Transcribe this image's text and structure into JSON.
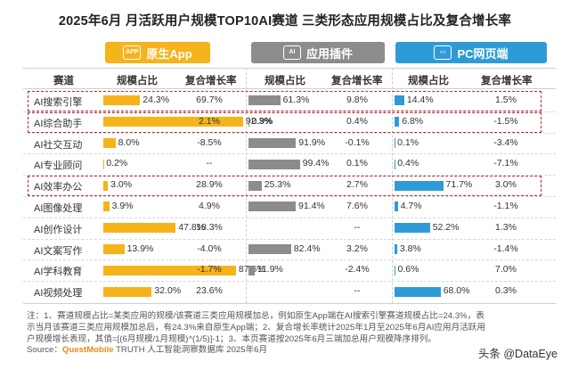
{
  "title": "2025年6月 月活跃用户规模TOP10AI赛道 三类形态应用规模占比及复合增长率",
  "groups": [
    {
      "name": "原生App",
      "icon": "APP",
      "color": "#f5b31c"
    },
    {
      "name": "应用插件",
      "icon": "AI",
      "color": "#8c8c8c"
    },
    {
      "name": "PC网页端",
      "icon": "▭",
      "color": "#2f9bd6"
    }
  ],
  "headers": {
    "track": "赛道",
    "share": "规模占比",
    "growth": "复合增长率"
  },
  "chart_data": {
    "type": "table",
    "rows": [
      {
        "track": "AI搜索引擎",
        "app_share": 24.3,
        "app_growth": "69.7%",
        "plugin_share": 61.3,
        "plugin_growth": "9.8%",
        "pc_share": 14.4,
        "pc_growth": "1.5%",
        "highlight": true
      },
      {
        "track": "AI综合助手",
        "app_share": 92.3,
        "app_growth": "2.1%",
        "plugin_share": 0.9,
        "plugin_growth": "0.4%",
        "pc_share": 6.8,
        "pc_growth": "-1.5%",
        "highlight": true
      },
      {
        "track": "AI社交互动",
        "app_share": 8.0,
        "app_growth": "-8.5%",
        "plugin_share": 91.9,
        "plugin_growth": "-0.1%",
        "pc_share": 0.1,
        "pc_growth": "-3.4%",
        "highlight": false
      },
      {
        "track": "AI专业顾问",
        "app_share": 0.2,
        "app_growth": "--",
        "plugin_share": 99.4,
        "plugin_growth": "0.1%",
        "pc_share": 0.4,
        "pc_growth": "-7.1%",
        "highlight": false
      },
      {
        "track": "AI效率办公",
        "app_share": 3.0,
        "app_growth": "28.9%",
        "plugin_share": 25.3,
        "plugin_growth": "2.7%",
        "pc_share": 71.7,
        "pc_growth": "3.0%",
        "highlight": true
      },
      {
        "track": "AI图像处理",
        "app_share": 3.9,
        "app_growth": "4.9%",
        "plugin_share": 91.4,
        "plugin_growth": "7.6%",
        "pc_share": 4.7,
        "pc_growth": "-1.1%",
        "highlight": false
      },
      {
        "track": "AI创作设计",
        "app_share": 47.8,
        "app_growth": "18.3%",
        "plugin_share": 0.0,
        "plugin_growth": "--",
        "pc_share": 52.2,
        "pc_growth": "1.3%",
        "highlight": false
      },
      {
        "track": "AI文案写作",
        "app_share": 13.9,
        "app_growth": "-4.0%",
        "plugin_share": 82.4,
        "plugin_growth": "3.2%",
        "pc_share": 3.8,
        "pc_growth": "-1.4%",
        "highlight": false
      },
      {
        "track": "AI学科教育",
        "app_share": 87.6,
        "app_growth": "-1.7%",
        "plugin_share": 11.9,
        "plugin_growth": "-2.4%",
        "pc_share": 0.6,
        "pc_growth": "7.0%",
        "highlight": false
      },
      {
        "track": "AI视频处理",
        "app_share": 32.0,
        "app_growth": "23.6%",
        "plugin_share": 0.0,
        "plugin_growth": "--",
        "pc_share": 68.0,
        "pc_growth": "0.3%",
        "highlight": false
      }
    ]
  },
  "footnote": {
    "line1": "注：1、赛道规模占比=某类应用的规模/该赛道三类应用规模加总，例如原生App端在AI搜索引擎赛道规模占比=24.3%，表",
    "line2": "示当月该赛道三类应用规模加总后，有24.3%来自原生App端；2、复合增长率统计2025年1月至2025年6月AI应用月活跃用",
    "line3": "户规模增长表现，其值=[(6月规模/1月规模)^(1/5)]-1；3、本页赛道按2025年6月三端加总用户规模降序排列。",
    "source_prefix": "Source：",
    "source_brand": "QuestMobile",
    "source_rest": " TRUTH 人工智能洞察数据库 2025年6月"
  },
  "watermark": "头条 @DataEye"
}
